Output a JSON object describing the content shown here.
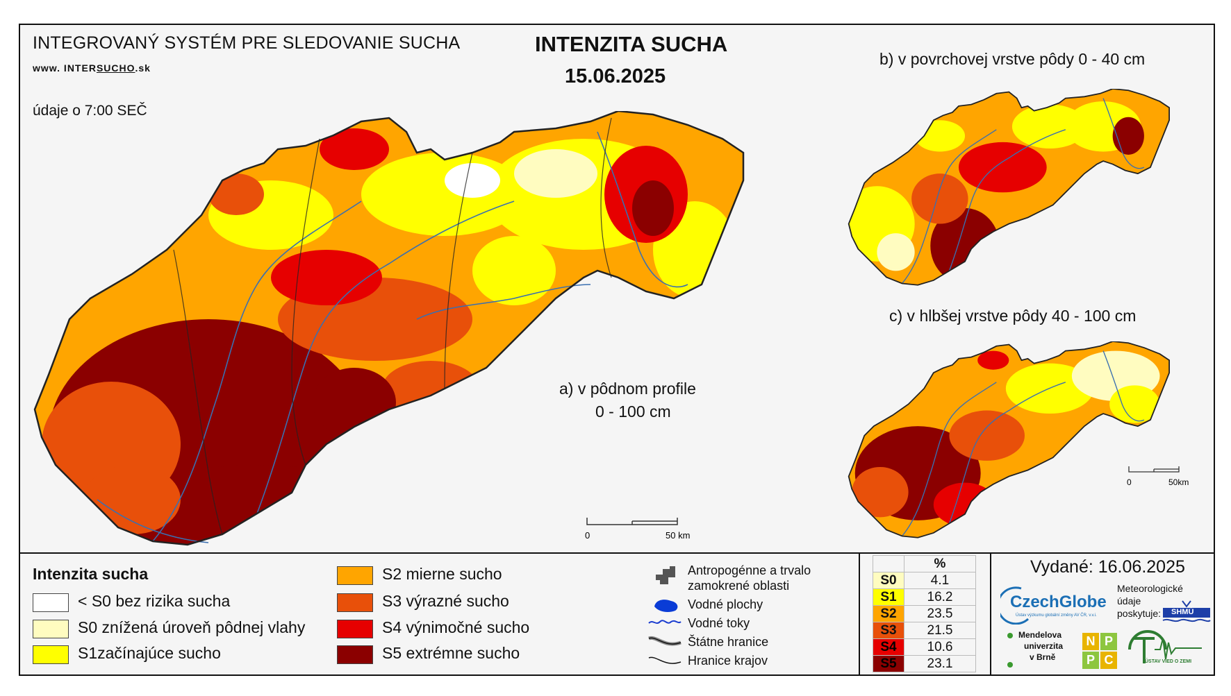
{
  "header": {
    "system_title": "INTEGROVANÝ SYSTÉM PRE SLEDOVANIE SUCHA",
    "web_prefix": "www. INTER",
    "web_mid": "SUCHO",
    "web_suffix": ".sk",
    "data_time": "údaje o 7:00 SEČ",
    "main_title": "INTENZITA SUCHA",
    "date": "15.06.2025"
  },
  "maps": {
    "a_line1": "a) v pôdnom profile",
    "a_line2": "0 - 100 cm",
    "b_label": "b) v povrchovej vrstve pôdy 0 - 40 cm",
    "c_label": "c) v hlbšej vrstve pôdy 40 - 100 cm",
    "scale_main_0": "0",
    "scale_main_50": "50 km",
    "scale_small_0": "0",
    "scale_small_50": "50km"
  },
  "legend": {
    "title": "Intenzita sucha",
    "classes": [
      {
        "label": "< S0 bez rizika sucha",
        "color": "#ffffff"
      },
      {
        "label": "S0 znížená úroveň pôdnej vlahy",
        "color": "#fffcc0"
      },
      {
        "label": "S1začínajúce sucho",
        "color": "#ffff00"
      },
      {
        "label": "S2 mierne sucho",
        "color": "#ffa500"
      },
      {
        "label": "S3 výrazné sucho",
        "color": "#e8500a"
      },
      {
        "label": "S4 výnimočné sucho",
        "color": "#e60000"
      },
      {
        "label": "S5 extrémne sucho",
        "color": "#8b0000"
      }
    ]
  },
  "symbols": {
    "anthropogenic_1": "Antropogénne a trvalo",
    "anthropogenic_2": "zamokrené oblasti",
    "water_areas": "Vodné plochy",
    "water_streams": "Vodné toky",
    "state_border": "Štátne hranice",
    "region_border": "Hranice krajov"
  },
  "percent_table": {
    "header": "%",
    "rows": [
      {
        "code": "S0",
        "value": "4.1",
        "color": "#fffcc0"
      },
      {
        "code": "S1",
        "value": "16.2",
        "color": "#ffff00"
      },
      {
        "code": "S2",
        "value": "23.5",
        "color": "#ffa500"
      },
      {
        "code": "S3",
        "value": "21.5",
        "color": "#e8500a"
      },
      {
        "code": "S4",
        "value": "10.6",
        "color": "#e60000"
      },
      {
        "code": "S5",
        "value": "23.1",
        "color": "#8b0000"
      }
    ]
  },
  "footer": {
    "issued": "Vydané: 16.06.2025",
    "czechglobe": "CzechGlobe",
    "czechglobe_sub": "Ústav výzkumu globální změny AV ČR, v.v.i.",
    "meteo_1": "Meteorologické",
    "meteo_2": "údaje",
    "meteo_3": "poskytuje:",
    "shmu": "SHMÚ",
    "mendel_1": "Mendelova",
    "mendel_2": "univerzita",
    "mendel_3": "v Brně",
    "nppc": [
      "N",
      "P",
      "P",
      "C"
    ],
    "uvz": "ÚSTAV VIED O ZEMI"
  }
}
